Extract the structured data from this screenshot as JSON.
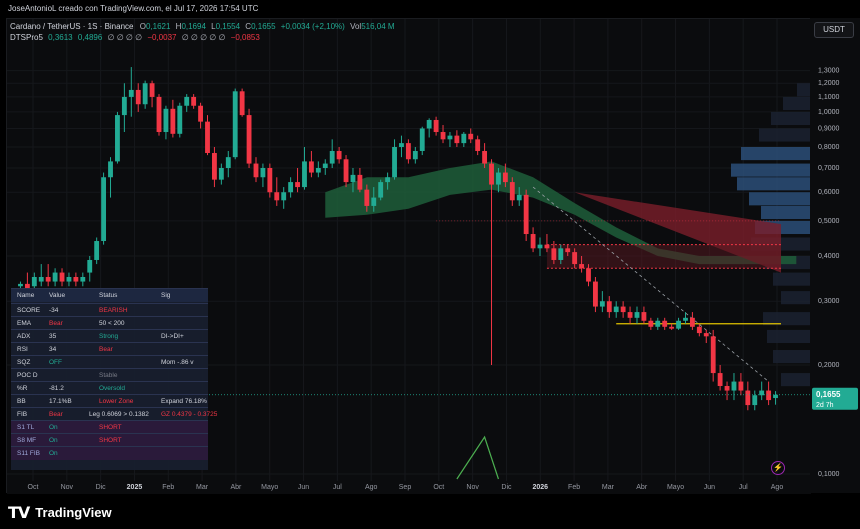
{
  "header": {
    "credit": "JoseAntonioL creado con TradingView.com, el Jul 17, 2026 17:54 UTC",
    "symbol": "Cardano / TetherUS · 1S · Binance",
    "o_label": "O",
    "o_value": "0,1621",
    "h_label": "H",
    "h_value": "0,1694",
    "l_label": "L",
    "l_value": "0,1554",
    "c_label": "C",
    "c_value": "0,1655",
    "change": "+0,0034 (+2,10%)",
    "vol_label": "Vol",
    "vol_value": "516,04 M",
    "indicator_name": "DTSPro5",
    "ind_v1": "0,3613",
    "ind_v2": "0,4896",
    "ind_empty1": "∅ ∅ ∅ ∅",
    "ind_v3": "−0,0037",
    "ind_empty2": "∅ ∅ ∅ ∅ ∅",
    "ind_v4": "−0,0853",
    "currency": "USDT"
  },
  "colors": {
    "up": "#22ab94",
    "down": "#f23645",
    "ema_fill": "#1e5e3a",
    "cloud_red": "#7a1e2a",
    "yellow_line": "#e2c300",
    "volume_profile": "#2a4a6e"
  },
  "chart_data": {
    "type": "candlestick",
    "symbol": "Cardano / TetherUS",
    "timeframe": "1S",
    "exchange": "Binance",
    "y_scale": "log",
    "ylim": [
      0.1,
      1.4
    ],
    "price_ticks": [
      "1,3000",
      "1,2000",
      "1,1000",
      "1,0000",
      "0,9000",
      "0,8000",
      "0,7000",
      "0,6000",
      "0,5000",
      "0,4000",
      "0,3000",
      "0,2000",
      "0,1000"
    ],
    "x_ticks": [
      "Oct",
      "Nov",
      "Dic",
      "2025",
      "Feb",
      "Mar",
      "Abr",
      "Mayo",
      "Jun",
      "Jul",
      "Ago",
      "Sep",
      "Oct",
      "Nov",
      "Dic",
      "2026",
      "Feb",
      "Mar",
      "Abr",
      "Mayo",
      "Jun",
      "Jul",
      "Ago"
    ],
    "last_price": "0,1655",
    "countdown": "2d 7h",
    "candles": [
      [
        0.33,
        0.34,
        0.32,
        0.335
      ],
      [
        0.335,
        0.36,
        0.31,
        0.315
      ],
      [
        0.33,
        0.36,
        0.3,
        0.35
      ],
      [
        0.34,
        0.38,
        0.33,
        0.35
      ],
      [
        0.35,
        0.38,
        0.33,
        0.34
      ],
      [
        0.34,
        0.37,
        0.33,
        0.36
      ],
      [
        0.36,
        0.37,
        0.33,
        0.34
      ],
      [
        0.34,
        0.36,
        0.33,
        0.35
      ],
      [
        0.35,
        0.36,
        0.33,
        0.34
      ],
      [
        0.34,
        0.36,
        0.33,
        0.35
      ],
      [
        0.36,
        0.4,
        0.34,
        0.39
      ],
      [
        0.39,
        0.45,
        0.38,
        0.44
      ],
      [
        0.44,
        0.68,
        0.43,
        0.66
      ],
      [
        0.66,
        0.75,
        0.58,
        0.73
      ],
      [
        0.73,
        1.0,
        0.72,
        0.98
      ],
      [
        0.98,
        1.2,
        0.88,
        1.1
      ],
      [
        1.1,
        1.33,
        0.97,
        1.15
      ],
      [
        1.15,
        1.2,
        1.0,
        1.05
      ],
      [
        1.05,
        1.22,
        1.02,
        1.2
      ],
      [
        1.2,
        1.22,
        1.03,
        1.1
      ],
      [
        1.1,
        1.12,
        0.86,
        0.88
      ],
      [
        0.88,
        1.04,
        0.84,
        1.02
      ],
      [
        1.02,
        1.08,
        0.85,
        0.87
      ],
      [
        0.87,
        1.06,
        0.85,
        1.04
      ],
      [
        1.04,
        1.12,
        1.0,
        1.1
      ],
      [
        1.1,
        1.12,
        1.02,
        1.04
      ],
      [
        1.04,
        1.06,
        0.9,
        0.94
      ],
      [
        0.94,
        0.98,
        0.76,
        0.77
      ],
      [
        0.77,
        0.8,
        0.62,
        0.65
      ],
      [
        0.65,
        0.72,
        0.63,
        0.7
      ],
      [
        0.7,
        0.78,
        0.66,
        0.75
      ],
      [
        0.75,
        1.16,
        0.74,
        1.14
      ],
      [
        1.14,
        1.16,
        0.97,
        0.98
      ],
      [
        0.98,
        1.02,
        0.7,
        0.72
      ],
      [
        0.72,
        0.75,
        0.64,
        0.66
      ],
      [
        0.66,
        0.72,
        0.62,
        0.7
      ],
      [
        0.7,
        0.72,
        0.58,
        0.6
      ],
      [
        0.6,
        0.66,
        0.55,
        0.57
      ],
      [
        0.57,
        0.62,
        0.54,
        0.6
      ],
      [
        0.6,
        0.66,
        0.58,
        0.64
      ],
      [
        0.64,
        0.7,
        0.6,
        0.62
      ],
      [
        0.62,
        0.8,
        0.61,
        0.73
      ],
      [
        0.73,
        0.78,
        0.66,
        0.68
      ],
      [
        0.68,
        0.73,
        0.66,
        0.7
      ],
      [
        0.7,
        0.74,
        0.67,
        0.72
      ],
      [
        0.72,
        0.84,
        0.7,
        0.78
      ],
      [
        0.78,
        0.8,
        0.72,
        0.74
      ],
      [
        0.74,
        0.76,
        0.62,
        0.64
      ],
      [
        0.64,
        0.7,
        0.6,
        0.67
      ],
      [
        0.67,
        0.7,
        0.6,
        0.61
      ],
      [
        0.61,
        0.63,
        0.53,
        0.55
      ],
      [
        0.55,
        0.62,
        0.53,
        0.58
      ],
      [
        0.58,
        0.65,
        0.57,
        0.64
      ],
      [
        0.64,
        0.68,
        0.61,
        0.66
      ],
      [
        0.66,
        0.84,
        0.65,
        0.8
      ],
      [
        0.8,
        0.86,
        0.75,
        0.82
      ],
      [
        0.82,
        0.84,
        0.72,
        0.74
      ],
      [
        0.74,
        0.8,
        0.72,
        0.78
      ],
      [
        0.78,
        0.91,
        0.76,
        0.9
      ],
      [
        0.9,
        0.96,
        0.85,
        0.95
      ],
      [
        0.95,
        0.97,
        0.86,
        0.88
      ],
      [
        0.88,
        0.92,
        0.82,
        0.84
      ],
      [
        0.84,
        0.88,
        0.8,
        0.86
      ],
      [
        0.86,
        0.89,
        0.8,
        0.82
      ],
      [
        0.82,
        0.88,
        0.8,
        0.87
      ],
      [
        0.87,
        0.9,
        0.82,
        0.84
      ],
      [
        0.84,
        0.86,
        0.76,
        0.78
      ],
      [
        0.78,
        0.82,
        0.7,
        0.72
      ],
      [
        0.72,
        0.74,
        0.2,
        0.63
      ],
      [
        0.63,
        0.7,
        0.6,
        0.68
      ],
      [
        0.68,
        0.72,
        0.62,
        0.64
      ],
      [
        0.64,
        0.66,
        0.55,
        0.57
      ],
      [
        0.57,
        0.62,
        0.55,
        0.59
      ],
      [
        0.59,
        0.61,
        0.44,
        0.46
      ],
      [
        0.46,
        0.48,
        0.41,
        0.42
      ],
      [
        0.42,
        0.45,
        0.4,
        0.43
      ],
      [
        0.43,
        0.46,
        0.41,
        0.42
      ],
      [
        0.42,
        0.44,
        0.38,
        0.39
      ],
      [
        0.39,
        0.43,
        0.38,
        0.42
      ],
      [
        0.42,
        0.43,
        0.4,
        0.41
      ],
      [
        0.41,
        0.42,
        0.37,
        0.38
      ],
      [
        0.38,
        0.4,
        0.36,
        0.37
      ],
      [
        0.37,
        0.38,
        0.33,
        0.34
      ],
      [
        0.34,
        0.35,
        0.28,
        0.29
      ],
      [
        0.29,
        0.32,
        0.28,
        0.3
      ],
      [
        0.3,
        0.31,
        0.27,
        0.28
      ],
      [
        0.28,
        0.3,
        0.27,
        0.29
      ],
      [
        0.29,
        0.3,
        0.27,
        0.28
      ],
      [
        0.28,
        0.29,
        0.26,
        0.27
      ],
      [
        0.27,
        0.29,
        0.26,
        0.28
      ],
      [
        0.28,
        0.29,
        0.26,
        0.265
      ],
      [
        0.265,
        0.27,
        0.25,
        0.255
      ],
      [
        0.255,
        0.27,
        0.25,
        0.265
      ],
      [
        0.265,
        0.27,
        0.25,
        0.255
      ],
      [
        0.255,
        0.26,
        0.25,
        0.252
      ],
      [
        0.252,
        0.27,
        0.25,
        0.265
      ],
      [
        0.265,
        0.28,
        0.26,
        0.27
      ],
      [
        0.27,
        0.28,
        0.25,
        0.255
      ],
      [
        0.255,
        0.26,
        0.24,
        0.245
      ],
      [
        0.245,
        0.25,
        0.23,
        0.24
      ],
      [
        0.24,
        0.25,
        0.18,
        0.19
      ],
      [
        0.19,
        0.2,
        0.17,
        0.175
      ],
      [
        0.175,
        0.18,
        0.16,
        0.17
      ],
      [
        0.17,
        0.19,
        0.16,
        0.18
      ],
      [
        0.18,
        0.19,
        0.165,
        0.17
      ],
      [
        0.17,
        0.18,
        0.15,
        0.155
      ],
      [
        0.155,
        0.17,
        0.15,
        0.165
      ],
      [
        0.165,
        0.18,
        0.16,
        0.17
      ],
      [
        0.17,
        0.18,
        0.155,
        0.16
      ],
      [
        0.1621,
        0.1694,
        0.1554,
        0.1655
      ]
    ],
    "ema_band": {
      "upper": [
        [
          44,
          0.6
        ],
        [
          50,
          0.66
        ],
        [
          56,
          0.66
        ],
        [
          62,
          0.7
        ],
        [
          68,
          0.73
        ],
        [
          74,
          0.66
        ],
        [
          80,
          0.56
        ],
        [
          86,
          0.48
        ],
        [
          92,
          0.42
        ],
        [
          98,
          0.4
        ],
        [
          105,
          0.4
        ],
        [
          112,
          0.4
        ]
      ],
      "lower": [
        [
          44,
          0.51
        ],
        [
          50,
          0.52
        ],
        [
          56,
          0.54
        ],
        [
          62,
          0.59
        ],
        [
          68,
          0.61
        ],
        [
          74,
          0.58
        ],
        [
          80,
          0.52
        ],
        [
          86,
          0.45
        ],
        [
          92,
          0.4
        ],
        [
          98,
          0.38
        ],
        [
          105,
          0.38
        ],
        [
          112,
          0.38
        ]
      ]
    },
    "horizontal_levels": [
      0.26,
      0.5
    ],
    "fib_zone_top": 0.43,
    "fib_zone_bottom": 0.37
  },
  "stat_table": {
    "headers": [
      "Name",
      "Value",
      "Status",
      "Sig"
    ],
    "rows": [
      {
        "name": "SCORE",
        "value": "-34",
        "status": "BEARISH",
        "sig": ""
      },
      {
        "name": "EMA",
        "value": "Bear",
        "status": "50 < 200",
        "sig": ""
      },
      {
        "name": "ADX",
        "value": "35",
        "status": "Strong",
        "sig": "DI->DI+"
      },
      {
        "name": "RSI",
        "value": "34",
        "status": "Bear",
        "sig": ""
      },
      {
        "name": "SQZ",
        "value": "OFF",
        "status": "",
        "sig": "Mom -.86 v"
      },
      {
        "name": "POC D",
        "value": "",
        "status": "Stable",
        "sig": ""
      },
      {
        "name": "%R",
        "value": "-81.2",
        "status": "Oversold",
        "sig": ""
      },
      {
        "name": "BB",
        "value": "17.1%B",
        "status": "Lower Zone",
        "sig": "Expand 76.18%"
      },
      {
        "name": "FIB",
        "value": "Bear",
        "status": "Leg 0.6069 > 0.1382",
        "sig": "GZ 0.4379 - 0.3725"
      },
      {
        "name": "S1 TL",
        "value": "On",
        "status": "SHORT",
        "sig": ""
      },
      {
        "name": "S8 MF",
        "value": "On",
        "status": "SHORT",
        "sig": ""
      },
      {
        "name": "S11 FIB",
        "value": "On",
        "status": "",
        "sig": ""
      }
    ]
  },
  "branding": {
    "logo_text": "TradingView",
    "logo_mark": "TV"
  }
}
